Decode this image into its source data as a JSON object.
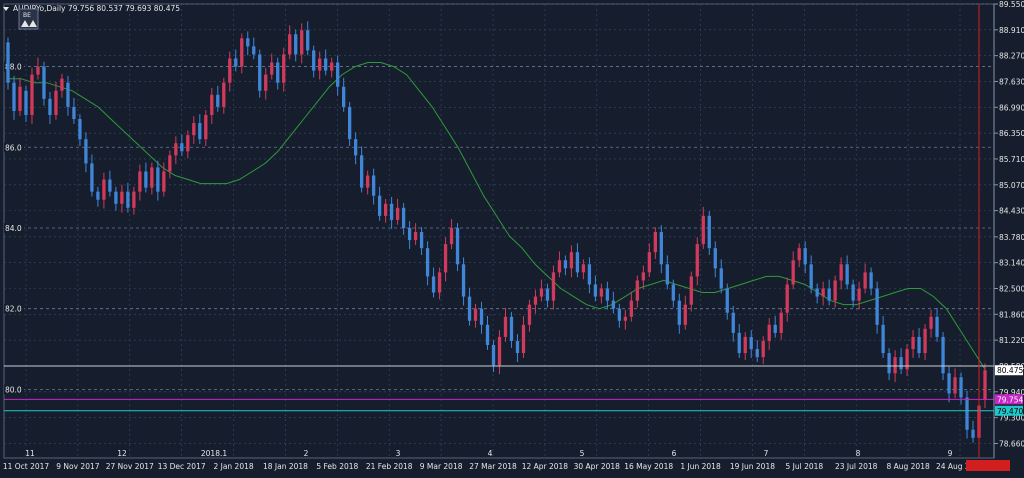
{
  "header": {
    "symbol_info": "AUDJPYo,Daily  79.756 80.537 79.693 80.475",
    "collapse_label": "BE"
  },
  "colors": {
    "background": "#161e2e",
    "grid": "#3a4a68",
    "axis_text": "#e6e6e6",
    "bull_candle": "#d23a5c",
    "bear_candle": "#3f86d8",
    "moving_average": "#2f9a3a",
    "level_line_white": "#c8d0d8",
    "level_line_magenta": "#c825c8",
    "level_line_cyan": "#1fc8c8",
    "vertical_marker": "#d21e1e"
  },
  "chart_data": {
    "type": "candlestick",
    "title": "AUDJPYo,Daily",
    "last_ohlc": {
      "open": 79.756,
      "high": 80.537,
      "low": 79.693,
      "close": 80.475
    },
    "ylim": [
      78.3,
      89.55
    ],
    "price_scale_ticks": [
      "89.550",
      "88.910",
      "88.270",
      "87.630",
      "86.990",
      "86.350",
      "85.710",
      "85.070",
      "84.430",
      "83.780",
      "83.140",
      "82.500",
      "81.860",
      "81.220",
      "80.580",
      "79.940",
      "79.300",
      "78.660"
    ],
    "price_labels": [
      {
        "text": "80.475",
        "value": 80.475,
        "color": "#ffffff",
        "text_color": "#000000"
      },
      {
        "text": "79.754",
        "value": 79.754,
        "color": "#c825c8",
        "text_color": "#ffffff"
      },
      {
        "text": "79.470",
        "value": 79.47,
        "color": "#1fc8c8",
        "text_color": "#000000"
      }
    ],
    "date_labels": [
      "11 Oct 2017",
      "9 Nov 2017",
      "27 Nov 2017",
      "13 Dec 2017",
      "2 Jan 2018",
      "18 Jan 2018",
      "5 Feb 2018",
      "21 Feb 2018",
      "9 Mar 2018",
      "27 Mar 2018",
      "12 Apr 2018",
      "30 Apr 2018",
      "16 May 2018",
      "1 Jun 2018",
      "19 Jun 2018",
      "5 Jul 2018",
      "23 Jul 2018",
      "8 Aug 2018",
      "24 Aug 2018"
    ],
    "fib_levels": [
      {
        "label": "88.0",
        "value": 88.0
      },
      {
        "label": "86.0",
        "value": 86.0
      },
      {
        "label": "84.0",
        "value": 84.0
      },
      {
        "label": "82.0",
        "value": 82.0
      },
      {
        "label": "80.0",
        "value": 80.0
      }
    ],
    "overlay_markers": [
      "11",
      "12",
      "2018.1",
      "2",
      "3",
      "4",
      "5",
      "6",
      "7",
      "8",
      "9"
    ],
    "horizontal_lines": [
      {
        "name": "white-level",
        "value": 80.58
      },
      {
        "name": "magenta-level",
        "value": 79.754
      },
      {
        "name": "cyan-level",
        "value": 79.47
      }
    ],
    "candles": [
      [
        88.6,
        87.6
      ],
      [
        87.6,
        86.9
      ],
      [
        86.9,
        87.5
      ],
      [
        87.4,
        86.8
      ],
      [
        86.8,
        87.8
      ],
      [
        87.8,
        88.0
      ],
      [
        88.0,
        87.2
      ],
      [
        87.2,
        86.8
      ],
      [
        86.8,
        87.4
      ],
      [
        87.4,
        87.7
      ],
      [
        87.6,
        87.0
      ],
      [
        87.0,
        86.7
      ],
      [
        86.7,
        86.2
      ],
      [
        86.2,
        85.6
      ],
      [
        85.6,
        84.9
      ],
      [
        84.9,
        84.7
      ],
      [
        84.7,
        85.2
      ],
      [
        85.2,
        84.9
      ],
      [
        84.9,
        84.6
      ],
      [
        84.6,
        84.9
      ],
      [
        84.9,
        84.5
      ],
      [
        84.5,
        84.9
      ],
      [
        84.9,
        85.4
      ],
      [
        85.4,
        85.0
      ],
      [
        85.0,
        85.5
      ],
      [
        85.5,
        84.9
      ],
      [
        84.9,
        85.4
      ],
      [
        85.4,
        85.8
      ],
      [
        85.8,
        86.1
      ],
      [
        86.1,
        85.9
      ],
      [
        85.9,
        86.3
      ],
      [
        86.3,
        86.6
      ],
      [
        86.6,
        86.2
      ],
      [
        86.2,
        86.8
      ],
      [
        86.8,
        87.3
      ],
      [
        87.3,
        87.0
      ],
      [
        87.0,
        87.6
      ],
      [
        87.6,
        88.2
      ],
      [
        88.2,
        88.0
      ],
      [
        88.0,
        88.7
      ],
      [
        88.7,
        88.5
      ],
      [
        88.5,
        88.3
      ],
      [
        88.3,
        87.4
      ],
      [
        87.4,
        87.8
      ],
      [
        87.8,
        88.1
      ],
      [
        88.1,
        87.6
      ],
      [
        87.6,
        88.3
      ],
      [
        88.3,
        88.8
      ],
      [
        88.8,
        88.3
      ],
      [
        88.3,
        88.9
      ],
      [
        88.9,
        88.4
      ],
      [
        88.4,
        87.9
      ],
      [
        87.9,
        88.2
      ],
      [
        88.2,
        87.9
      ],
      [
        87.9,
        88.1
      ],
      [
        88.1,
        87.5
      ],
      [
        87.5,
        87.0
      ],
      [
        87.0,
        86.2
      ],
      [
        86.2,
        85.8
      ],
      [
        85.8,
        85.0
      ],
      [
        85.0,
        85.3
      ],
      [
        85.3,
        84.8
      ],
      [
        84.8,
        84.3
      ],
      [
        84.3,
        84.6
      ],
      [
        84.6,
        84.2
      ],
      [
        84.2,
        84.5
      ],
      [
        84.5,
        84.0
      ],
      [
        84.0,
        83.7
      ],
      [
        83.7,
        83.9
      ],
      [
        83.9,
        83.5
      ],
      [
        83.5,
        82.8
      ],
      [
        82.8,
        82.4
      ],
      [
        82.4,
        82.9
      ],
      [
        82.9,
        83.6
      ],
      [
        83.6,
        84.0
      ],
      [
        84.0,
        83.1
      ],
      [
        83.1,
        82.3
      ],
      [
        82.3,
        81.7
      ],
      [
        81.7,
        82.0
      ],
      [
        82.0,
        81.6
      ],
      [
        81.6,
        81.1
      ],
      [
        81.1,
        80.6
      ],
      [
        80.6,
        81.3
      ],
      [
        81.3,
        81.8
      ],
      [
        81.8,
        81.2
      ],
      [
        81.2,
        80.9
      ],
      [
        80.9,
        81.6
      ],
      [
        81.6,
        82.1
      ],
      [
        82.1,
        82.3
      ],
      [
        82.3,
        82.5
      ],
      [
        82.5,
        82.2
      ],
      [
        82.2,
        82.9
      ],
      [
        82.9,
        83.2
      ],
      [
        83.2,
        83.0
      ],
      [
        83.0,
        83.4
      ],
      [
        83.4,
        82.9
      ],
      [
        82.9,
        83.1
      ],
      [
        83.1,
        82.6
      ],
      [
        82.6,
        82.3
      ],
      [
        82.3,
        82.5
      ],
      [
        82.5,
        82.2
      ],
      [
        82.2,
        82.0
      ],
      [
        82.0,
        81.7
      ],
      [
        81.7,
        81.8
      ],
      [
        81.8,
        82.2
      ],
      [
        82.2,
        82.7
      ],
      [
        82.7,
        82.9
      ],
      [
        82.9,
        83.4
      ],
      [
        83.4,
        83.9
      ],
      [
        83.9,
        83.1
      ],
      [
        83.1,
        82.6
      ],
      [
        82.6,
        82.2
      ],
      [
        82.2,
        81.6
      ],
      [
        81.6,
        82.1
      ],
      [
        82.1,
        82.8
      ],
      [
        82.8,
        83.6
      ],
      [
        83.6,
        84.3
      ],
      [
        84.3,
        83.5
      ],
      [
        83.5,
        83.0
      ],
      [
        83.0,
        82.5
      ],
      [
        82.5,
        81.9
      ],
      [
        81.9,
        81.4
      ],
      [
        81.4,
        80.9
      ],
      [
        80.9,
        81.3
      ],
      [
        81.3,
        81.0
      ],
      [
        81.0,
        80.8
      ],
      [
        80.8,
        81.2
      ],
      [
        81.2,
        81.6
      ],
      [
        81.6,
        81.4
      ],
      [
        81.4,
        81.9
      ],
      [
        81.9,
        82.6
      ],
      [
        82.6,
        83.2
      ],
      [
        83.2,
        83.5
      ],
      [
        83.5,
        83.1
      ],
      [
        83.1,
        82.5
      ],
      [
        82.5,
        82.3
      ],
      [
        82.3,
        82.5
      ],
      [
        82.5,
        82.2
      ],
      [
        82.2,
        82.7
      ],
      [
        82.7,
        83.1
      ],
      [
        83.1,
        82.6
      ],
      [
        82.6,
        82.2
      ],
      [
        82.2,
        82.5
      ],
      [
        82.5,
        82.9
      ],
      [
        82.9,
        82.5
      ],
      [
        82.5,
        81.6
      ],
      [
        81.6,
        80.9
      ],
      [
        80.9,
        80.4
      ],
      [
        80.4,
        80.8
      ],
      [
        80.8,
        80.5
      ],
      [
        80.5,
        81.0
      ],
      [
        81.0,
        81.3
      ],
      [
        81.3,
        80.9
      ],
      [
        80.9,
        81.5
      ],
      [
        81.5,
        81.8
      ],
      [
        81.8,
        81.3
      ],
      [
        81.3,
        80.4
      ],
      [
        80.4,
        79.9
      ],
      [
        79.9,
        80.3
      ],
      [
        80.3,
        79.8
      ],
      [
        79.8,
        79.0
      ],
      [
        79.0,
        78.8
      ],
      [
        78.8,
        79.6
      ],
      [
        79.756,
        80.475
      ]
    ],
    "moving_average": [
      87.7,
      87.7,
      87.6,
      87.6,
      87.5,
      87.4,
      87.2,
      87.0,
      86.7,
      86.4,
      86.1,
      85.8,
      85.5,
      85.3,
      85.2,
      85.1,
      85.1,
      85.1,
      85.2,
      85.4,
      85.6,
      85.9,
      86.3,
      86.7,
      87.1,
      87.5,
      87.8,
      88.0,
      88.1,
      88.1,
      88.0,
      87.8,
      87.4,
      87.0,
      86.5,
      86.0,
      85.4,
      84.8,
      84.3,
      83.8,
      83.5,
      83.1,
      82.8,
      82.5,
      82.3,
      82.1,
      82.0,
      82.1,
      82.3,
      82.5,
      82.6,
      82.7,
      82.6,
      82.5,
      82.4,
      82.4,
      82.5,
      82.6,
      82.7,
      82.8,
      82.8,
      82.7,
      82.6,
      82.4,
      82.2,
      82.1,
      82.1,
      82.2,
      82.3,
      82.4,
      82.5,
      82.5,
      82.3,
      82.0,
      81.5,
      81.0,
      80.5
    ]
  }
}
